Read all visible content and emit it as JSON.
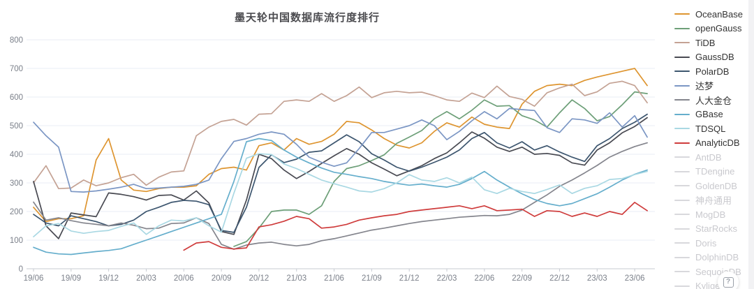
{
  "help_button": {
    "label": "?"
  },
  "legend": {
    "inactive_color": "#d8d8dc",
    "items": [
      {
        "label": "OceanBase",
        "color": "#de9530",
        "active": true
      },
      {
        "label": "openGauss",
        "color": "#6d9f78",
        "active": true
      },
      {
        "label": "TiDB",
        "color": "#c4a294",
        "active": true
      },
      {
        "label": "GaussDB",
        "color": "#494a52",
        "active": true
      },
      {
        "label": "PolarDB",
        "color": "#3d566f",
        "active": true
      },
      {
        "label": "达梦",
        "color": "#7b96c4",
        "active": true
      },
      {
        "label": "人大金仓",
        "color": "#84858d",
        "active": true
      },
      {
        "label": "GBase",
        "color": "#65aecc",
        "active": true
      },
      {
        "label": "TDSQL",
        "color": "#a9d8e3",
        "active": true
      },
      {
        "label": "AnalyticDB",
        "color": "#cf3c3c",
        "active": true
      },
      {
        "label": "AntDB",
        "color": "",
        "active": false
      },
      {
        "label": "TDengine",
        "color": "",
        "active": false
      },
      {
        "label": "GoldenDB",
        "color": "",
        "active": false
      },
      {
        "label": "神舟通用",
        "color": "",
        "active": false
      },
      {
        "label": "MogDB",
        "color": "",
        "active": false
      },
      {
        "label": "StarRocks",
        "color": "",
        "active": false
      },
      {
        "label": "Doris",
        "color": "",
        "active": false
      },
      {
        "label": "DolphinDB",
        "color": "",
        "active": false
      },
      {
        "label": "SequoiaDB",
        "color": "",
        "active": false
      },
      {
        "label": "Kylige",
        "color": "",
        "active": false
      }
    ]
  },
  "chart_data": {
    "type": "line",
    "title": "墨天轮中国数据库流行度排行",
    "xlabel": "",
    "ylabel": "",
    "grid": true,
    "legend_position": "right",
    "y_axis": {
      "min": 0,
      "max": 800,
      "interval": 100,
      "ticks": [
        0,
        100,
        200,
        300,
        400,
        500,
        600,
        700,
        800
      ]
    },
    "x_tick_labels": [
      "19/06",
      "19/09",
      "19/12",
      "20/03",
      "20/06",
      "20/09",
      "20/12",
      "21/03",
      "21/06",
      "21/09",
      "21/12",
      "22/03",
      "22/06",
      "22/09",
      "22/12",
      "23/03",
      "23/06"
    ],
    "months": [
      "19/06",
      "19/07",
      "19/08",
      "19/09",
      "19/10",
      "19/11",
      "19/12",
      "20/01",
      "20/02",
      "20/03",
      "20/04",
      "20/05",
      "20/06",
      "20/07",
      "20/08",
      "20/09",
      "20/10",
      "20/11",
      "20/12",
      "21/01",
      "21/02",
      "21/03",
      "21/04",
      "21/05",
      "21/06",
      "21/07",
      "21/08",
      "21/09",
      "21/10",
      "21/11",
      "21/12",
      "22/01",
      "22/02",
      "22/03",
      "22/04",
      "22/05",
      "22/06",
      "22/07",
      "22/08",
      "22/09",
      "22/10",
      "22/11",
      "22/12",
      "23/01",
      "23/02",
      "23/03",
      "23/04",
      "23/05",
      "23/06",
      "23/07"
    ],
    "series": [
      {
        "name": "OceanBase",
        "color": "#de9530",
        "values": [
          215,
          165,
          175,
          175,
          185,
          380,
          455,
          310,
          275,
          270,
          280,
          285,
          285,
          290,
          330,
          350,
          355,
          345,
          430,
          440,
          415,
          455,
          435,
          445,
          470,
          515,
          510,
          485,
          455,
          432,
          422,
          440,
          480,
          510,
          495,
          530,
          505,
          495,
          490,
          575,
          620,
          640,
          645,
          640,
          658,
          670,
          680,
          690,
          700,
          640
        ]
      },
      {
        "name": "openGauss",
        "color": "#6d9f78",
        "values": [
          null,
          null,
          null,
          null,
          null,
          null,
          null,
          null,
          null,
          null,
          null,
          null,
          null,
          null,
          null,
          null,
          78,
          95,
          142,
          200,
          205,
          205,
          190,
          220,
          305,
          350,
          360,
          378,
          398,
          438,
          460,
          483,
          524,
          549,
          524,
          554,
          590,
          568,
          570,
          535,
          520,
          495,
          545,
          590,
          560,
          517,
          532,
          573,
          618,
          612
        ]
      },
      {
        "name": "TiDB",
        "color": "#c4a294",
        "values": [
          300,
          360,
          280,
          282,
          310,
          290,
          300,
          318,
          330,
          292,
          320,
          338,
          342,
          465,
          495,
          515,
          522,
          502,
          540,
          542,
          585,
          590,
          585,
          612,
          585,
          605,
          635,
          598,
          615,
          620,
          615,
          617,
          605,
          590,
          585,
          614,
          598,
          638,
          602,
          592,
          568,
          615,
          632,
          645,
          605,
          618,
          648,
          655,
          640,
          580
        ]
      },
      {
        "name": "GaussDB",
        "color": "#494a52",
        "values": [
          305,
          150,
          105,
          195,
          188,
          182,
          265,
          260,
          252,
          240,
          256,
          258,
          240,
          272,
          230,
          130,
          120,
          240,
          400,
          385,
          345,
          315,
          340,
          368,
          395,
          420,
          400,
          370,
          348,
          325,
          342,
          360,
          385,
          405,
          440,
          478,
          456,
          425,
          410,
          425,
          400,
          403,
          396,
          370,
          362,
          415,
          440,
          475,
          497,
          528
        ]
      },
      {
        "name": "PolarDB",
        "color": "#3d566f",
        "values": [
          190,
          160,
          150,
          185,
          175,
          165,
          150,
          155,
          170,
          200,
          215,
          232,
          239,
          236,
          224,
          134,
          127,
          215,
          354,
          398,
          371,
          383,
          407,
          412,
          440,
          468,
          444,
          402,
          380,
          355,
          341,
          355,
          372,
          390,
          415,
          455,
          476,
          440,
          422,
          444,
          415,
          430,
          408,
          390,
          375,
          430,
          455,
          490,
          512,
          540
        ]
      },
      {
        "name": "达梦",
        "color": "#7b96c4",
        "values": [
          512,
          465,
          425,
          270,
          268,
          272,
          278,
          285,
          295,
          280,
          282,
          285,
          288,
          295,
          310,
          385,
          445,
          455,
          470,
          478,
          470,
          435,
          390,
          372,
          358,
          370,
          420,
          476,
          476,
          488,
          500,
          520,
          500,
          451,
          480,
          517,
          549,
          524,
          560,
          556,
          553,
          493,
          476,
          524,
          520,
          508,
          545,
          495,
          535,
          460
        ]
      },
      {
        "name": "人大金仓",
        "color": "#84858d",
        "values": [
          233,
          170,
          178,
          168,
          160,
          155,
          150,
          160,
          152,
          140,
          142,
          158,
          160,
          178,
          158,
          85,
          68,
          83,
          90,
          93,
          85,
          80,
          85,
          98,
          105,
          115,
          125,
          135,
          142,
          150,
          158,
          165,
          170,
          175,
          180,
          183,
          186,
          185,
          190,
          205,
          232,
          258,
          288,
          310,
          335,
          361,
          390,
          410,
          427,
          440
        ]
      },
      {
        "name": "GBase",
        "color": "#65aecc",
        "values": [
          75,
          58,
          52,
          50,
          55,
          60,
          64,
          70,
          85,
          100,
          115,
          130,
          145,
          160,
          175,
          190,
          305,
          444,
          455,
          448,
          415,
          390,
          370,
          352,
          337,
          330,
          322,
          315,
          305,
          298,
          292,
          296,
          290,
          285,
          295,
          315,
          340,
          310,
          285,
          262,
          242,
          228,
          220,
          228,
          245,
          262,
          285,
          310,
          330,
          345
        ]
      },
      {
        "name": "TDSQL",
        "color": "#a9d8e3",
        "values": [
          112,
          150,
          158,
          132,
          124,
          130,
          134,
          148,
          160,
          120,
          150,
          170,
          167,
          178,
          150,
          128,
          264,
          386,
          402,
          399,
          366,
          350,
          330,
          310,
          297,
          285,
          272,
          268,
          280,
          300,
          329,
          310,
          305,
          318,
          300,
          320,
          276,
          263,
          281,
          270,
          263,
          277,
          293,
          263,
          281,
          290,
          312,
          315,
          329,
          340
        ]
      },
      {
        "name": "AnalyticDB",
        "color": "#cf3c3c",
        "values": [
          null,
          null,
          null,
          null,
          null,
          null,
          null,
          null,
          null,
          null,
          null,
          null,
          65,
          90,
          95,
          75,
          69,
          73,
          146,
          154,
          166,
          183,
          175,
          142,
          146,
          155,
          170,
          178,
          185,
          190,
          200,
          205,
          210,
          215,
          220,
          210,
          220,
          203,
          205,
          208,
          183,
          203,
          200,
          183,
          195,
          183,
          200,
          190,
          232,
          203
        ]
      }
    ]
  }
}
